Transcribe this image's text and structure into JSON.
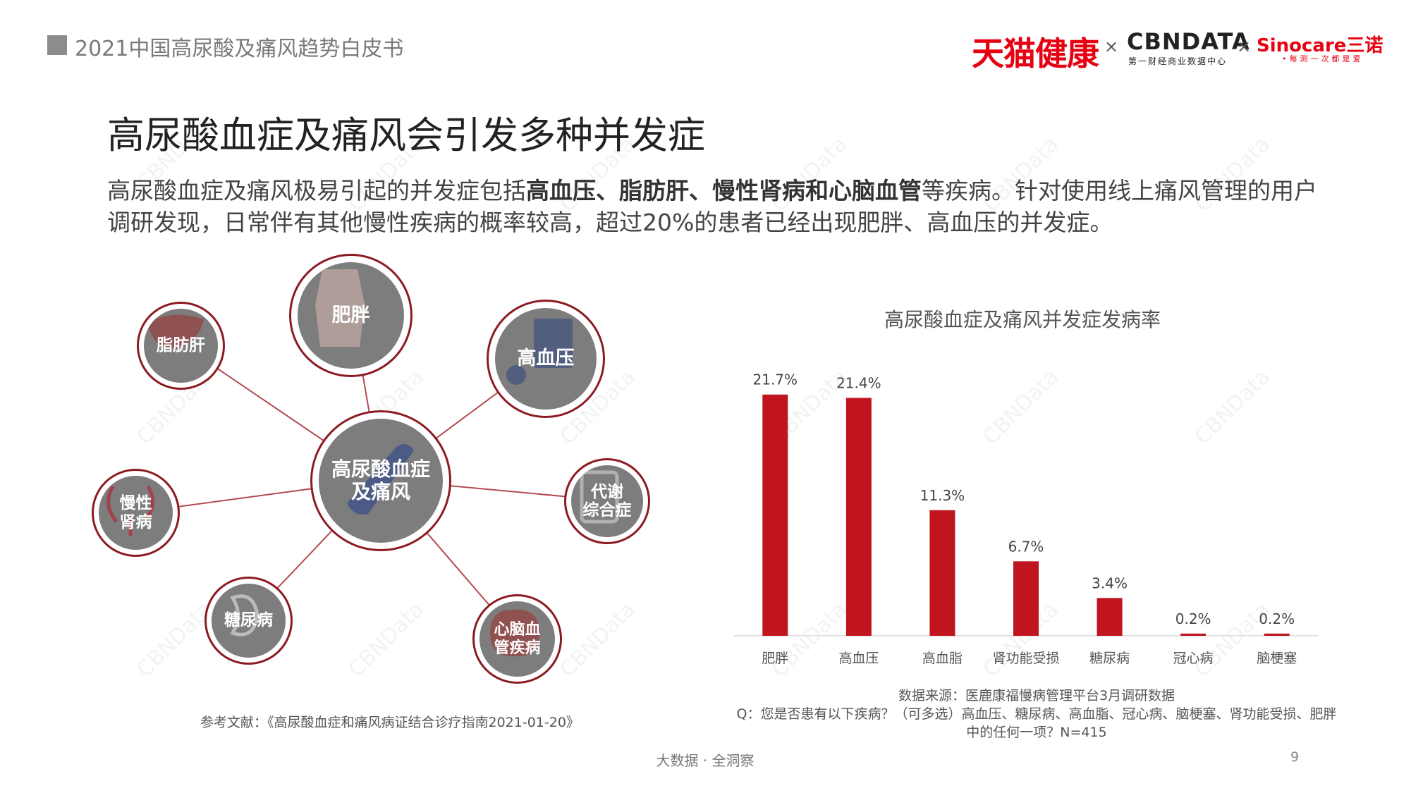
{
  "header": {
    "report_title": "2021中国高尿酸及痛风趋势白皮书",
    "logos": {
      "tmall": "天猫健康",
      "times": "×",
      "cbn": "CBNDATA",
      "cbn_sub": "第一财经商业数据中心",
      "sino": "Sinocare三诺",
      "sino_sub": "•每测一次都是爱"
    }
  },
  "slide": {
    "title": "高尿酸血症及痛风会引发多种并发症",
    "intro": {
      "part1": "高尿酸血症及痛风极易引起的并发症包括",
      "bold": "高血压、脂肪肝、慢性肾病和心脑血管",
      "part2": "等疾病。针对使用线上痛风管理的用户调研发现，日常伴有其他慢性疾病的概率较高，超过20%的患者已经出现肥胖、高血压的并发症。"
    }
  },
  "diagram": {
    "center": "高尿酸血症\n及痛风",
    "nodes": {
      "obesity": "肥胖",
      "fatty_liver": "脂肪肝",
      "hypertension": "高血压",
      "kidney": "慢性\n肾病",
      "metabolic": "代谢\n综合症",
      "diabetes": "糖尿病",
      "cardio": "心脑血\n管疾病"
    }
  },
  "reference": "参考文献：《高尿酸血症和痛风病证结合诊疗指南2021-01-20》",
  "chart_data": {
    "type": "bar",
    "title": "高尿酸血症及痛风并发症发病率",
    "categories": [
      "肥胖",
      "高血压",
      "高血脂",
      "肾功能受损",
      "糖尿病",
      "冠心病",
      "脑梗塞"
    ],
    "values": [
      21.7,
      21.4,
      11.3,
      6.7,
      3.4,
      0.2,
      0.2
    ],
    "value_labels": [
      "21.7%",
      "21.4%",
      "11.3%",
      "6.7%",
      "3.4%",
      "0.2%",
      "0.2%"
    ],
    "unit": "%",
    "ylim": [
      0,
      22
    ],
    "grid": false,
    "bar_color": "#c0141e"
  },
  "source": {
    "line1": "数据来源：医鹿康福慢病管理平台3月调研数据",
    "line2": "Q：您是否患有以下疾病？（可多选）高血压、糖尿病、高血脂、冠心病、脑梗塞、肾功能受损、肥胖中的任何一项？N=415"
  },
  "footer": {
    "tagline": "大数据 · 全洞察",
    "page": "9"
  },
  "watermark": "CBNData",
  "colors": {
    "accent": "#c0141e",
    "node_border": "#8c1a22",
    "node_fill": "#7d7d7d"
  }
}
